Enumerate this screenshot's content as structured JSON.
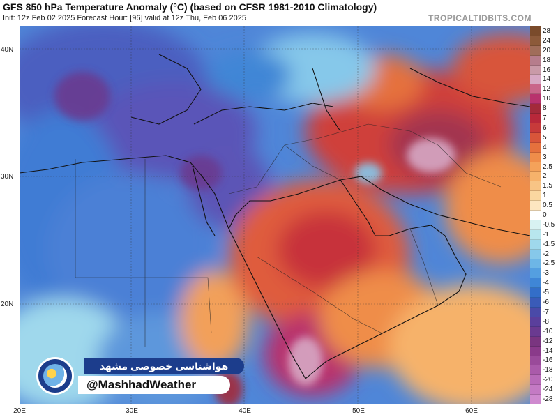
{
  "header": {
    "title": "GFS 850 hPa Temperature Anomaly (°C) (based on CFSR 1981-2010 Climatology)",
    "subtitle": "Init: 12z Feb 02 2025   Forecast Hour: [96]   valid at 12z Thu, Feb 06 2025",
    "brand": "TROPICALTIDBITS.COM"
  },
  "axes": {
    "latitudes": [
      "40N",
      "30N",
      "20N"
    ],
    "longitudes": [
      "20E",
      "30E",
      "40E",
      "50E",
      "60E"
    ]
  },
  "legend": {
    "values": [
      "28",
      "24",
      "20",
      "18",
      "16",
      "14",
      "12",
      "10",
      "8",
      "7",
      "6",
      "5",
      "4",
      "3",
      "2.5",
      "2",
      "1.5",
      "1",
      "0.5",
      "0",
      "-0.5",
      "-1",
      "-1.5",
      "-2",
      "-2.5",
      "-3",
      "-4",
      "-5",
      "-6",
      "-7",
      "-8",
      "-10",
      "-12",
      "-14",
      "-16",
      "-18",
      "-20",
      "-24",
      "-28"
    ],
    "colors": [
      "#7a4b2b",
      "#8c5a3a",
      "#a06d5a",
      "#b67d8c",
      "#c99aa8",
      "#d7a8c4",
      "#c9658a",
      "#b8326d",
      "#a32a3a",
      "#b8283a",
      "#c73a3a",
      "#d8553a",
      "#e5713d",
      "#ef8d4a",
      "#f4a25a",
      "#f6b26b",
      "#f8c485",
      "#fad7a0",
      "#fde6c0",
      "#ffffff",
      "#d8f2f2",
      "#b8e6ee",
      "#9fd8ec",
      "#86c8ea",
      "#6db6e6",
      "#549fe0",
      "#3f86d6",
      "#336ec8",
      "#3a5bb8",
      "#4a4aa8",
      "#5a3f9c",
      "#6a3a90",
      "#7a3580",
      "#8a3a8a",
      "#9a4a9a",
      "#aa5aaa",
      "#b86ab8",
      "#c47ac4",
      "#cf8acf"
    ]
  },
  "watermark": {
    "persian_text": "هواشناسی خصوصی مشهد",
    "handle": "@MashhadWeather"
  }
}
